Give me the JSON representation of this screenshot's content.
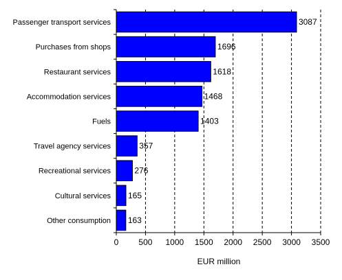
{
  "chart_data": {
    "type": "bar",
    "orientation": "horizontal",
    "categories": [
      "Passenger transport services",
      "Purchases from shops",
      "Restaurant services",
      "Accommodation services",
      "Fuels",
      "Travel agency services",
      "Recreational services",
      "Cultural services",
      "Other consumption"
    ],
    "values": [
      3087,
      1696,
      1618,
      1468,
      1403,
      357,
      276,
      165,
      163
    ],
    "xlabel": "EUR million",
    "ylabel": "",
    "xlim": [
      0,
      3500
    ],
    "xticks": [
      0,
      500,
      1000,
      1500,
      2000,
      2500,
      3000,
      3500
    ],
    "grid": "vertical dashed",
    "legend": "none",
    "bar_color": "#0000ff",
    "bar_edge_color": "#000000"
  }
}
